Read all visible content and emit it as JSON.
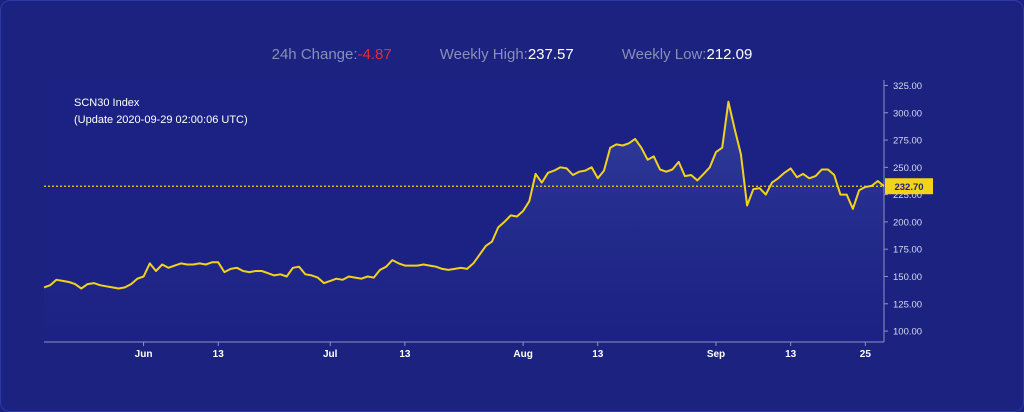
{
  "stats": {
    "change_label": "24h Change: ",
    "change_value": "-4.87",
    "high_label": "Weekly High: ",
    "high_value": "237.57",
    "low_label": "Weekly Low: ",
    "low_value": "212.09"
  },
  "colors": {
    "background": "#1b2280",
    "line": "#f3d21a",
    "negative": "#e8273b",
    "badge": "#f3d21a"
  },
  "chart_data": {
    "type": "area",
    "title": "SCN30 Index",
    "subtitle": "(Update 2020-09-29 02:00:06 UTC)",
    "current_value_label": "232.70",
    "current_value": 232.7,
    "ylim": [
      90,
      330
    ],
    "yticks": [
      100,
      125,
      150,
      175,
      200,
      225,
      250,
      275,
      300,
      325
    ],
    "ytick_labels": [
      "100.00",
      "125.00",
      "150.00",
      "175.00",
      "200.00",
      "225.00",
      "250.00",
      "275.00",
      "300.00",
      "325.00"
    ],
    "xlim": [
      "2020-05-16",
      "2020-09-28"
    ],
    "xticks": [
      "2020-06-01",
      "2020-06-13",
      "2020-07-01",
      "2020-07-13",
      "2020-08-01",
      "2020-08-13",
      "2020-09-01",
      "2020-09-13",
      "2020-09-25"
    ],
    "xtick_labels": [
      "Jun",
      "13",
      "Jul",
      "13",
      "Aug",
      "13",
      "Sep",
      "13",
      "25"
    ],
    "grid": false,
    "series": [
      {
        "points": [
          [
            "2020-05-16",
            140
          ],
          [
            "2020-05-17",
            142
          ],
          [
            "2020-05-18",
            147
          ],
          [
            "2020-05-19",
            146
          ],
          [
            "2020-05-20",
            145
          ],
          [
            "2020-05-21",
            143
          ],
          [
            "2020-05-22",
            139
          ],
          [
            "2020-05-23",
            143
          ],
          [
            "2020-05-24",
            144
          ],
          [
            "2020-05-25",
            142
          ],
          [
            "2020-05-26",
            141
          ],
          [
            "2020-05-27",
            140
          ],
          [
            "2020-05-28",
            139
          ],
          [
            "2020-05-29",
            140
          ],
          [
            "2020-05-30",
            143
          ],
          [
            "2020-05-31",
            148
          ],
          [
            "2020-06-01",
            150
          ],
          [
            "2020-06-02",
            162
          ],
          [
            "2020-06-03",
            155
          ],
          [
            "2020-06-04",
            161
          ],
          [
            "2020-06-05",
            158
          ],
          [
            "2020-06-06",
            160
          ],
          [
            "2020-06-07",
            162
          ],
          [
            "2020-06-08",
            161
          ],
          [
            "2020-06-09",
            161
          ],
          [
            "2020-06-10",
            162
          ],
          [
            "2020-06-11",
            161
          ],
          [
            "2020-06-12",
            163
          ],
          [
            "2020-06-13",
            163
          ],
          [
            "2020-06-14",
            154
          ],
          [
            "2020-06-15",
            157
          ],
          [
            "2020-06-16",
            158
          ],
          [
            "2020-06-17",
            155
          ],
          [
            "2020-06-18",
            154
          ],
          [
            "2020-06-19",
            155
          ],
          [
            "2020-06-20",
            155
          ],
          [
            "2020-06-21",
            153
          ],
          [
            "2020-06-22",
            151
          ],
          [
            "2020-06-23",
            152
          ],
          [
            "2020-06-24",
            150
          ],
          [
            "2020-06-25",
            158
          ],
          [
            "2020-06-26",
            159
          ],
          [
            "2020-06-27",
            152
          ],
          [
            "2020-06-28",
            151
          ],
          [
            "2020-06-29",
            149
          ],
          [
            "2020-06-30",
            144
          ],
          [
            "2020-07-01",
            146
          ],
          [
            "2020-07-02",
            148
          ],
          [
            "2020-07-03",
            147
          ],
          [
            "2020-07-04",
            150
          ],
          [
            "2020-07-05",
            149
          ],
          [
            "2020-07-06",
            148
          ],
          [
            "2020-07-07",
            150
          ],
          [
            "2020-07-08",
            149
          ],
          [
            "2020-07-09",
            156
          ],
          [
            "2020-07-10",
            159
          ],
          [
            "2020-07-11",
            165
          ],
          [
            "2020-07-12",
            162
          ],
          [
            "2020-07-13",
            160
          ],
          [
            "2020-07-14",
            160
          ],
          [
            "2020-07-15",
            160
          ],
          [
            "2020-07-16",
            161
          ],
          [
            "2020-07-17",
            160
          ],
          [
            "2020-07-18",
            159
          ],
          [
            "2020-07-19",
            157
          ],
          [
            "2020-07-20",
            156
          ],
          [
            "2020-07-21",
            157
          ],
          [
            "2020-07-22",
            158
          ],
          [
            "2020-07-23",
            157
          ],
          [
            "2020-07-24",
            162
          ],
          [
            "2020-07-25",
            170
          ],
          [
            "2020-07-26",
            178
          ],
          [
            "2020-07-27",
            182
          ],
          [
            "2020-07-28",
            195
          ],
          [
            "2020-07-29",
            200
          ],
          [
            "2020-07-30",
            206
          ],
          [
            "2020-07-31",
            205
          ],
          [
            "2020-08-01",
            210
          ],
          [
            "2020-08-02",
            219
          ],
          [
            "2020-08-03",
            244
          ],
          [
            "2020-08-04",
            236
          ],
          [
            "2020-08-05",
            245
          ],
          [
            "2020-08-06",
            247
          ],
          [
            "2020-08-07",
            250
          ],
          [
            "2020-08-08",
            249
          ],
          [
            "2020-08-09",
            243
          ],
          [
            "2020-08-10",
            246
          ],
          [
            "2020-08-11",
            247
          ],
          [
            "2020-08-12",
            250
          ],
          [
            "2020-08-13",
            240
          ],
          [
            "2020-08-14",
            247
          ],
          [
            "2020-08-15",
            268
          ],
          [
            "2020-08-16",
            271
          ],
          [
            "2020-08-17",
            270
          ],
          [
            "2020-08-18",
            272
          ],
          [
            "2020-08-19",
            276
          ],
          [
            "2020-08-20",
            268
          ],
          [
            "2020-08-21",
            257
          ],
          [
            "2020-08-22",
            260
          ],
          [
            "2020-08-23",
            248
          ],
          [
            "2020-08-24",
            246
          ],
          [
            "2020-08-25",
            248
          ],
          [
            "2020-08-26",
            255
          ],
          [
            "2020-08-27",
            242
          ],
          [
            "2020-08-28",
            243
          ],
          [
            "2020-08-29",
            238
          ],
          [
            "2020-08-30",
            244
          ],
          [
            "2020-08-31",
            250
          ],
          [
            "2020-09-01",
            264
          ],
          [
            "2020-09-02",
            268
          ],
          [
            "2020-09-03",
            310
          ],
          [
            "2020-09-04",
            285
          ],
          [
            "2020-09-05",
            262
          ],
          [
            "2020-09-06",
            215
          ],
          [
            "2020-09-07",
            230
          ],
          [
            "2020-09-08",
            231
          ],
          [
            "2020-09-09",
            225
          ],
          [
            "2020-09-10",
            236
          ],
          [
            "2020-09-11",
            240
          ],
          [
            "2020-09-12",
            245
          ],
          [
            "2020-09-13",
            249
          ],
          [
            "2020-09-14",
            241
          ],
          [
            "2020-09-15",
            244
          ],
          [
            "2020-09-16",
            240
          ],
          [
            "2020-09-17",
            242
          ],
          [
            "2020-09-18",
            248
          ],
          [
            "2020-09-19",
            248
          ],
          [
            "2020-09-20",
            243
          ],
          [
            "2020-09-21",
            225
          ],
          [
            "2020-09-22",
            225
          ],
          [
            "2020-09-23",
            212
          ],
          [
            "2020-09-24",
            229
          ],
          [
            "2020-09-25",
            232
          ],
          [
            "2020-09-26",
            233
          ],
          [
            "2020-09-27",
            237.5
          ],
          [
            "2020-09-28",
            232.7
          ]
        ]
      }
    ]
  }
}
